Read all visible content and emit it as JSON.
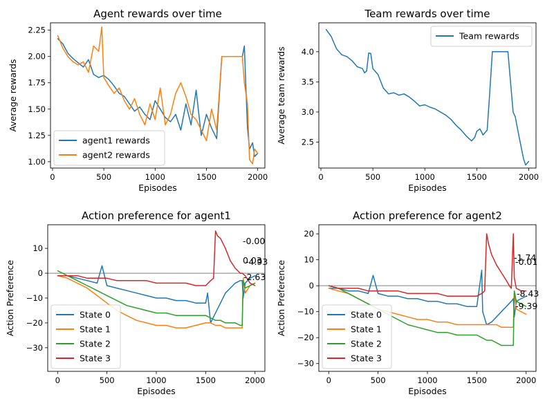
{
  "colors": {
    "blue": "#1f77b4",
    "orange": "#ff7f0e",
    "green": "#2ca02c",
    "red": "#d62728",
    "gray": "#808080"
  },
  "chart_data": [
    {
      "type": "line",
      "title": "Agent rewards over time",
      "xlabel": "Episodes",
      "ylabel": "Average rewards",
      "xlim": [
        -20,
        2070
      ],
      "ylim": [
        0.94,
        2.32
      ],
      "xticks": [
        0,
        500,
        1000,
        1500,
        2000
      ],
      "yticks": [
        1.0,
        1.25,
        1.5,
        1.75,
        2.0,
        2.25
      ],
      "ytick_labels": [
        "1.00",
        "1.25",
        "1.50",
        "1.75",
        "2.00",
        "2.25"
      ],
      "legend_position": "lower left",
      "series": [
        {
          "name": "agent1 rewards",
          "color": "#1f77b4",
          "x": [
            50,
            100,
            150,
            200,
            250,
            300,
            350,
            400,
            450,
            500,
            550,
            600,
            650,
            700,
            750,
            800,
            850,
            900,
            950,
            1000,
            1050,
            1100,
            1150,
            1200,
            1250,
            1300,
            1350,
            1400,
            1450,
            1500,
            1550,
            1600,
            1650,
            1700,
            1750,
            1800,
            1850,
            1870,
            1900,
            1920,
            1950,
            1970,
            2000
          ],
          "y": [
            2.17,
            2.12,
            2.03,
            1.98,
            1.94,
            1.9,
            1.97,
            1.83,
            1.8,
            1.82,
            1.78,
            1.72,
            1.65,
            1.62,
            1.55,
            1.48,
            1.52,
            1.45,
            1.4,
            1.58,
            1.5,
            1.42,
            1.38,
            1.45,
            1.3,
            1.55,
            1.35,
            1.68,
            1.25,
            1.45,
            1.32,
            1.22,
            2.0,
            2.0,
            2.0,
            2.0,
            2.0,
            2.1,
            1.32,
            1.12,
            1.18,
            1.05,
            1.08
          ]
        },
        {
          "name": "agent2 rewards",
          "color": "#ff7f0e",
          "x": [
            50,
            100,
            150,
            200,
            250,
            300,
            350,
            400,
            450,
            480,
            500,
            550,
            600,
            650,
            700,
            750,
            800,
            850,
            900,
            950,
            1000,
            1050,
            1100,
            1150,
            1200,
            1250,
            1300,
            1350,
            1400,
            1450,
            1500,
            1550,
            1600,
            1650,
            1700,
            1750,
            1800,
            1850,
            1870,
            1900,
            1920,
            1950,
            1970,
            2000
          ],
          "y": [
            2.2,
            2.08,
            2.0,
            1.95,
            1.92,
            1.95,
            1.85,
            2.1,
            2.05,
            2.28,
            1.8,
            1.72,
            1.65,
            1.7,
            1.58,
            1.5,
            1.6,
            1.45,
            1.35,
            1.55,
            1.4,
            1.7,
            1.35,
            1.45,
            1.65,
            1.75,
            1.62,
            1.45,
            1.4,
            1.3,
            1.2,
            1.5,
            1.3,
            2.0,
            2.0,
            2.0,
            2.0,
            2.0,
            1.75,
            1.55,
            1.02,
            0.98,
            1.12,
            1.08
          ]
        }
      ]
    },
    {
      "type": "line",
      "title": "Team rewards over time",
      "xlabel": "Episodes",
      "ylabel": "Average team rewards",
      "xlim": [
        -20,
        2070
      ],
      "ylim": [
        2.07,
        4.48
      ],
      "xticks": [
        0,
        500,
        1000,
        1500,
        2000
      ],
      "yticks": [
        2.5,
        3.0,
        3.5,
        4.0
      ],
      "ytick_labels": [
        "2.5",
        "3.0",
        "3.5",
        "4.0"
      ],
      "legend_position": "upper right",
      "series": [
        {
          "name": "Team rewards",
          "color": "#1f77b4",
          "x": [
            50,
            100,
            150,
            200,
            250,
            300,
            350,
            400,
            420,
            440,
            460,
            480,
            500,
            550,
            600,
            650,
            700,
            750,
            800,
            850,
            900,
            950,
            1000,
            1050,
            1100,
            1150,
            1200,
            1250,
            1300,
            1350,
            1400,
            1450,
            1480,
            1500,
            1530,
            1560,
            1600,
            1620,
            1650,
            1700,
            1750,
            1790,
            1800,
            1850,
            1870,
            1900,
            1950,
            1970,
            2000
          ],
          "y": [
            4.37,
            4.25,
            4.05,
            3.95,
            3.92,
            3.85,
            3.75,
            3.72,
            3.65,
            3.68,
            3.98,
            3.97,
            3.72,
            3.62,
            3.4,
            3.3,
            3.32,
            3.28,
            3.3,
            3.25,
            3.18,
            3.1,
            3.12,
            3.08,
            3.05,
            3.0,
            2.95,
            2.88,
            2.78,
            2.7,
            2.6,
            2.52,
            2.58,
            2.68,
            2.72,
            2.62,
            2.7,
            3.2,
            4.0,
            4.0,
            4.0,
            4.0,
            4.0,
            3.0,
            2.92,
            2.65,
            2.22,
            2.12,
            2.18
          ]
        }
      ]
    },
    {
      "type": "line",
      "title": "Action preference for agent1",
      "xlabel": "Episodes",
      "ylabel": "Action Preference",
      "xlim": [
        -100,
        2100
      ],
      "ylim": [
        -39.5,
        19.5
      ],
      "xticks": [
        0,
        500,
        1000,
        1500,
        2000
      ],
      "yticks": [
        -30,
        -20,
        -10,
        0,
        10
      ],
      "ytick_labels": [
        "−30",
        "−20",
        "−10",
        "0",
        "10"
      ],
      "hline": 0,
      "legend_position": "lower left",
      "annotations": [
        "-0.00",
        "0.03",
        "-4.93",
        "-2.63"
      ],
      "series": [
        {
          "name": "State 0",
          "color": "#1f77b4",
          "x": [
            0,
            100,
            200,
            300,
            400,
            450,
            500,
            600,
            700,
            800,
            900,
            1000,
            1100,
            1200,
            1300,
            1400,
            1500,
            1520,
            1550,
            1600,
            1650,
            1700,
            1750,
            1800,
            1850,
            1870,
            1880,
            1900,
            1950,
            2000
          ],
          "y": [
            -1,
            -1,
            -2,
            -3,
            -4,
            3,
            -5,
            -6,
            -7,
            -8,
            -9,
            -10,
            -10,
            -11,
            -11,
            -12,
            -12,
            -8,
            -20,
            -16,
            -12,
            -8,
            -6,
            -4,
            -3,
            -3,
            -10,
            -4,
            -2,
            -1
          ]
        },
        {
          "name": "State 1",
          "color": "#ff7f0e",
          "x": [
            0,
            100,
            200,
            300,
            400,
            500,
            600,
            700,
            800,
            900,
            1000,
            1100,
            1200,
            1300,
            1400,
            1500,
            1550,
            1600,
            1650,
            1700,
            1750,
            1800,
            1850,
            1870,
            1880,
            1900,
            1950,
            2000
          ],
          "y": [
            -1,
            -2,
            -4,
            -6,
            -9,
            -12,
            -15,
            -17,
            -19,
            -20,
            -21,
            -21,
            -22,
            -22,
            -21,
            -20,
            -20,
            -21,
            -21,
            -22,
            -22,
            -22,
            -22,
            -22,
            -2,
            -8,
            -5,
            -4
          ]
        },
        {
          "name": "State 2",
          "color": "#2ca02c",
          "x": [
            0,
            100,
            200,
            300,
            400,
            500,
            600,
            700,
            800,
            900,
            1000,
            1100,
            1200,
            1300,
            1400,
            1500,
            1550,
            1600,
            1650,
            1700,
            1750,
            1800,
            1850,
            1870,
            1880,
            1900,
            1950,
            2000
          ],
          "y": [
            1,
            -1,
            -3,
            -5,
            -7,
            -9,
            -11,
            -13,
            -14,
            -15,
            -16,
            -16,
            -17,
            -17,
            -17,
            -17,
            -18,
            -19,
            -19,
            -20,
            -20,
            -20,
            -21,
            -21,
            -3,
            -6,
            -5,
            -4
          ]
        },
        {
          "name": "State 3",
          "color": "#d62728",
          "x": [
            0,
            100,
            200,
            300,
            400,
            500,
            600,
            700,
            800,
            900,
            1000,
            1100,
            1200,
            1300,
            1400,
            1500,
            1550,
            1580,
            1600,
            1620,
            1650,
            1700,
            1750,
            1800,
            1850,
            1870,
            1900,
            1950,
            2000
          ],
          "y": [
            -1,
            -1,
            -1,
            -2,
            -2,
            -2,
            -3,
            -3,
            -3,
            -3,
            -4,
            -4,
            -4,
            -4,
            -5,
            -5,
            -3,
            -2,
            17,
            15,
            14,
            10,
            5,
            2,
            0,
            0,
            -1,
            -4,
            -5
          ]
        }
      ]
    },
    {
      "type": "line",
      "title": "Action preference for agent2",
      "xlabel": "Episodes",
      "ylabel": "Action Preference",
      "xlim": [
        -100,
        2100
      ],
      "ylim": [
        -33,
        23.5
      ],
      "xticks": [
        0,
        500,
        1000,
        1500,
        2000
      ],
      "yticks": [
        -30,
        -20,
        -10,
        0,
        10,
        20
      ],
      "ytick_labels": [
        "−30",
        "−20",
        "−10",
        "0",
        "10",
        "20"
      ],
      "hline": 0,
      "legend_position": "lower left",
      "annotations": [
        "-1.74",
        "-0.01",
        "-8.43",
        "-9.39"
      ],
      "series": [
        {
          "name": "State 0",
          "color": "#1f77b4",
          "x": [
            0,
            100,
            200,
            300,
            400,
            450,
            500,
            600,
            700,
            800,
            900,
            1000,
            1100,
            1200,
            1300,
            1400,
            1500,
            1550,
            1560,
            1600,
            1650,
            1700,
            1750,
            1800,
            1850,
            1870,
            1880,
            1900,
            1950,
            2000
          ],
          "y": [
            -1,
            -1,
            -2,
            -2,
            -3,
            4,
            -3,
            -4,
            -4,
            -5,
            -5,
            -6,
            -6,
            -7,
            -7,
            -8,
            -8,
            6,
            -10,
            -15,
            -14,
            -12,
            -10,
            -8,
            -6,
            -5,
            -12,
            -6,
            -5,
            -4
          ]
        },
        {
          "name": "State 1",
          "color": "#ff7f0e",
          "x": [
            0,
            100,
            200,
            300,
            400,
            500,
            600,
            700,
            800,
            900,
            1000,
            1100,
            1200,
            1300,
            1400,
            1500,
            1550,
            1600,
            1650,
            1700,
            1750,
            1800,
            1850,
            1870,
            1880,
            1900,
            1950,
            2000
          ],
          "y": [
            -1,
            -2,
            -3,
            -5,
            -7,
            -9,
            -10,
            -11,
            -12,
            -13,
            -13,
            -14,
            -14,
            -15,
            -15,
            -15,
            -15,
            -15,
            -15,
            -15,
            -16,
            -16,
            -16,
            -16,
            -3,
            -9,
            -10,
            -11
          ]
        },
        {
          "name": "State 2",
          "color": "#2ca02c",
          "x": [
            0,
            100,
            200,
            300,
            400,
            500,
            600,
            700,
            800,
            900,
            1000,
            1100,
            1200,
            1300,
            1400,
            1500,
            1550,
            1600,
            1650,
            1700,
            1750,
            1800,
            1850,
            1870,
            1880,
            1900,
            1950,
            2000
          ],
          "y": [
            0,
            -1,
            -3,
            -5,
            -7,
            -9,
            -11,
            -13,
            -15,
            -16,
            -17,
            -18,
            -18,
            -19,
            -19,
            -19,
            -20,
            -21,
            -21,
            -22,
            -23,
            -23,
            -23,
            -23,
            -2,
            -6,
            -7,
            -8
          ]
        },
        {
          "name": "State 3",
          "color": "#d62728",
          "x": [
            0,
            100,
            200,
            300,
            400,
            500,
            600,
            700,
            800,
            900,
            1000,
            1100,
            1200,
            1300,
            1400,
            1500,
            1550,
            1580,
            1600,
            1620,
            1650,
            1700,
            1750,
            1800,
            1830,
            1850,
            1870,
            1880,
            1900,
            1950,
            2000
          ],
          "y": [
            0,
            -1,
            -1,
            -1,
            -2,
            -2,
            -2,
            -2,
            -3,
            -3,
            -3,
            -3,
            -4,
            -4,
            -4,
            -4,
            -3,
            -2,
            20,
            16,
            12,
            8,
            5,
            2,
            0,
            -1,
            20,
            3,
            -1,
            -2,
            -2
          ]
        }
      ]
    }
  ]
}
